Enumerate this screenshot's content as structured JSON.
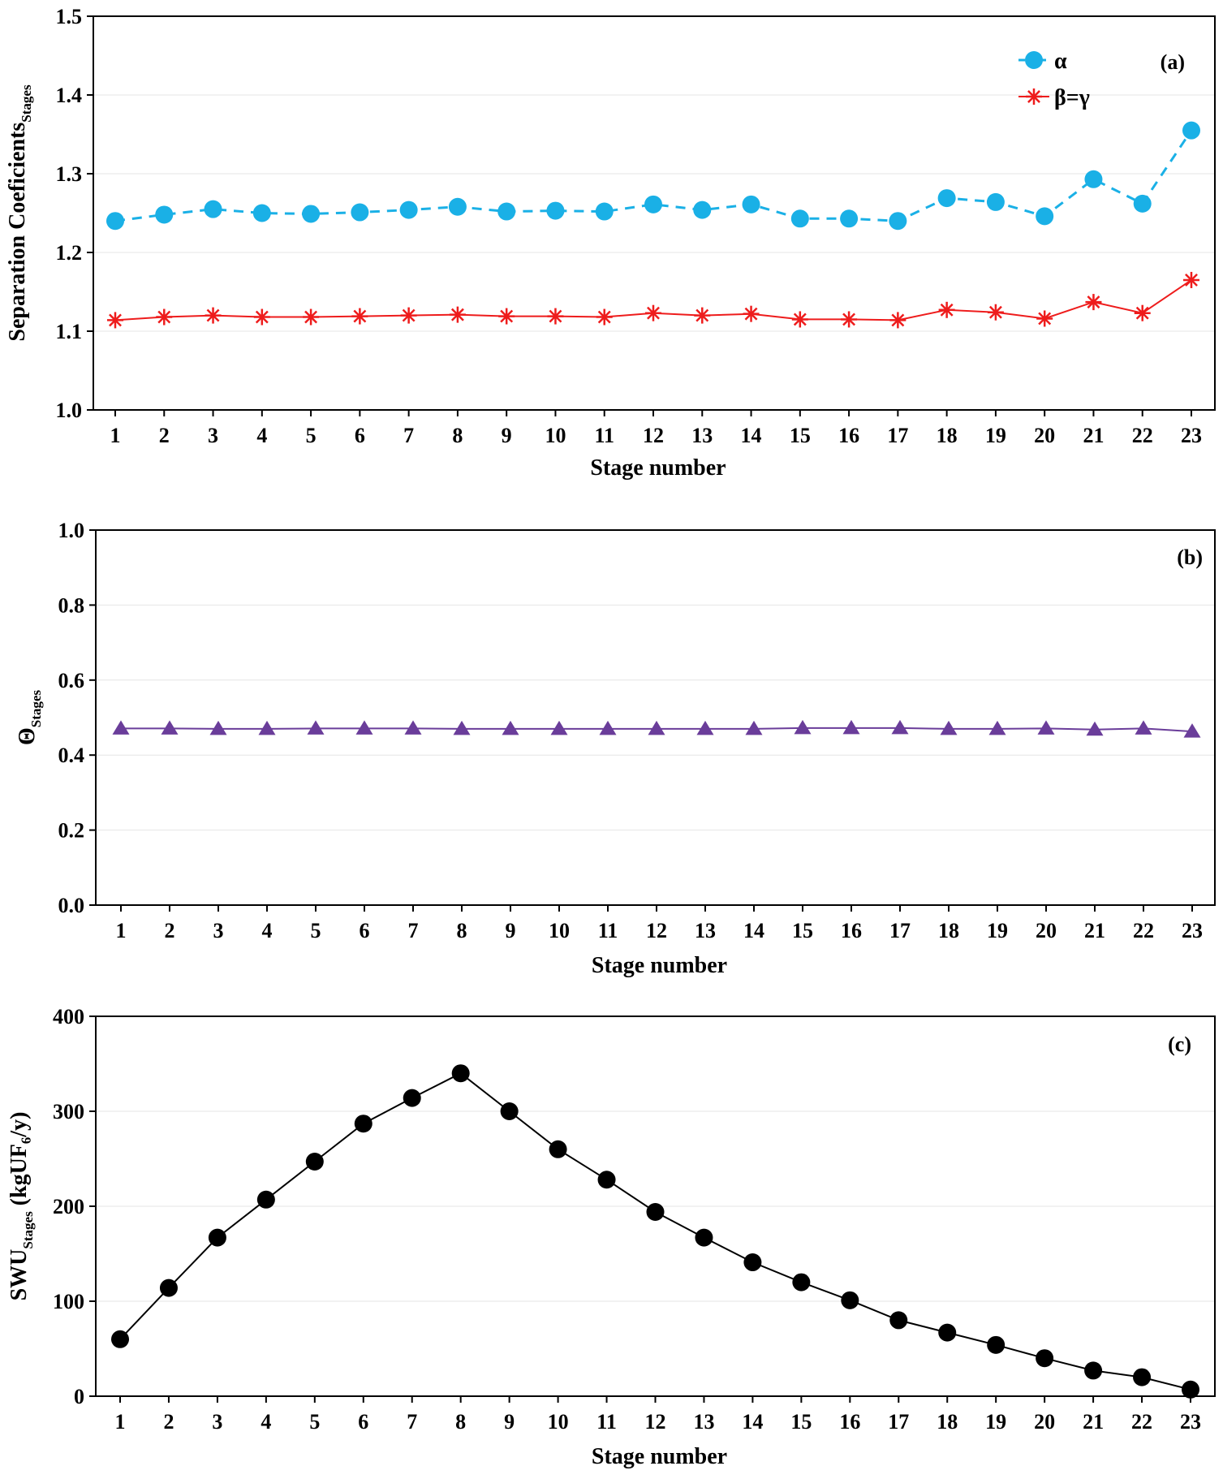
{
  "chart_data": [
    {
      "type": "line",
      "panel_label": "(a)",
      "xlabel": "Stage number",
      "ylabel": "Separation Coeficients",
      "ylabel_subscript": "Stages",
      "x": [
        1,
        2,
        3,
        4,
        5,
        6,
        7,
        8,
        9,
        10,
        11,
        12,
        13,
        14,
        15,
        16,
        17,
        18,
        19,
        20,
        21,
        22,
        23
      ],
      "ylim": [
        1.0,
        1.5
      ],
      "yticks": [
        "1.0",
        "1.1",
        "1.2",
        "1.3",
        "1.4",
        "1.5"
      ],
      "legend_position": "top-right",
      "series": [
        {
          "name": "α",
          "color": "#1ab0e6",
          "marker": "circle",
          "line": "dashed",
          "values": [
            1.24,
            1.248,
            1.255,
            1.25,
            1.249,
            1.251,
            1.254,
            1.258,
            1.252,
            1.253,
            1.252,
            1.261,
            1.254,
            1.261,
            1.243,
            1.243,
            1.24,
            1.269,
            1.264,
            1.246,
            1.293,
            1.262,
            1.355
          ]
        },
        {
          "name": "β=γ",
          "color": "#ee1c1c",
          "marker": "asterisk",
          "line": "solid",
          "values": [
            1.114,
            1.118,
            1.12,
            1.118,
            1.118,
            1.119,
            1.12,
            1.121,
            1.119,
            1.119,
            1.118,
            1.123,
            1.12,
            1.122,
            1.115,
            1.115,
            1.114,
            1.127,
            1.124,
            1.116,
            1.137,
            1.123,
            1.165
          ]
        }
      ]
    },
    {
      "type": "line",
      "panel_label": "(b)",
      "xlabel": "Stage number",
      "ylabel": "Θ",
      "ylabel_subscript": "Stages",
      "x": [
        1,
        2,
        3,
        4,
        5,
        6,
        7,
        8,
        9,
        10,
        11,
        12,
        13,
        14,
        15,
        16,
        17,
        18,
        19,
        20,
        21,
        22,
        23
      ],
      "ylim": [
        0.0,
        1.0
      ],
      "yticks": [
        "0.0",
        "0.2",
        "0.4",
        "0.6",
        "0.8",
        "1.0"
      ],
      "series": [
        {
          "color": "#6a3d9a",
          "marker": "triangle",
          "line": "solid",
          "values": [
            0.471,
            0.471,
            0.47,
            0.47,
            0.471,
            0.471,
            0.471,
            0.47,
            0.47,
            0.47,
            0.47,
            0.47,
            0.47,
            0.47,
            0.472,
            0.472,
            0.472,
            0.47,
            0.47,
            0.471,
            0.468,
            0.471,
            0.463
          ]
        }
      ]
    },
    {
      "type": "line",
      "panel_label": "(c)",
      "xlabel": "Stage number",
      "ylabel": "SWU",
      "ylabel_subscript": "Stages",
      "ylabel_unit": " (kgUF₆/y)",
      "x": [
        1,
        2,
        3,
        4,
        5,
        6,
        7,
        8,
        9,
        10,
        11,
        12,
        13,
        14,
        15,
        16,
        17,
        18,
        19,
        20,
        21,
        22,
        23
      ],
      "ylim": [
        0,
        400
      ],
      "yticks": [
        "0",
        "100",
        "200",
        "300",
        "400"
      ],
      "series": [
        {
          "color": "#000000",
          "marker": "circle",
          "line": "solid",
          "values": [
            60,
            114,
            167,
            207,
            247,
            287,
            314,
            340,
            300,
            260,
            228,
            194,
            167,
            141,
            120,
            101,
            80,
            67,
            54,
            40,
            27,
            20,
            7
          ]
        }
      ]
    }
  ]
}
